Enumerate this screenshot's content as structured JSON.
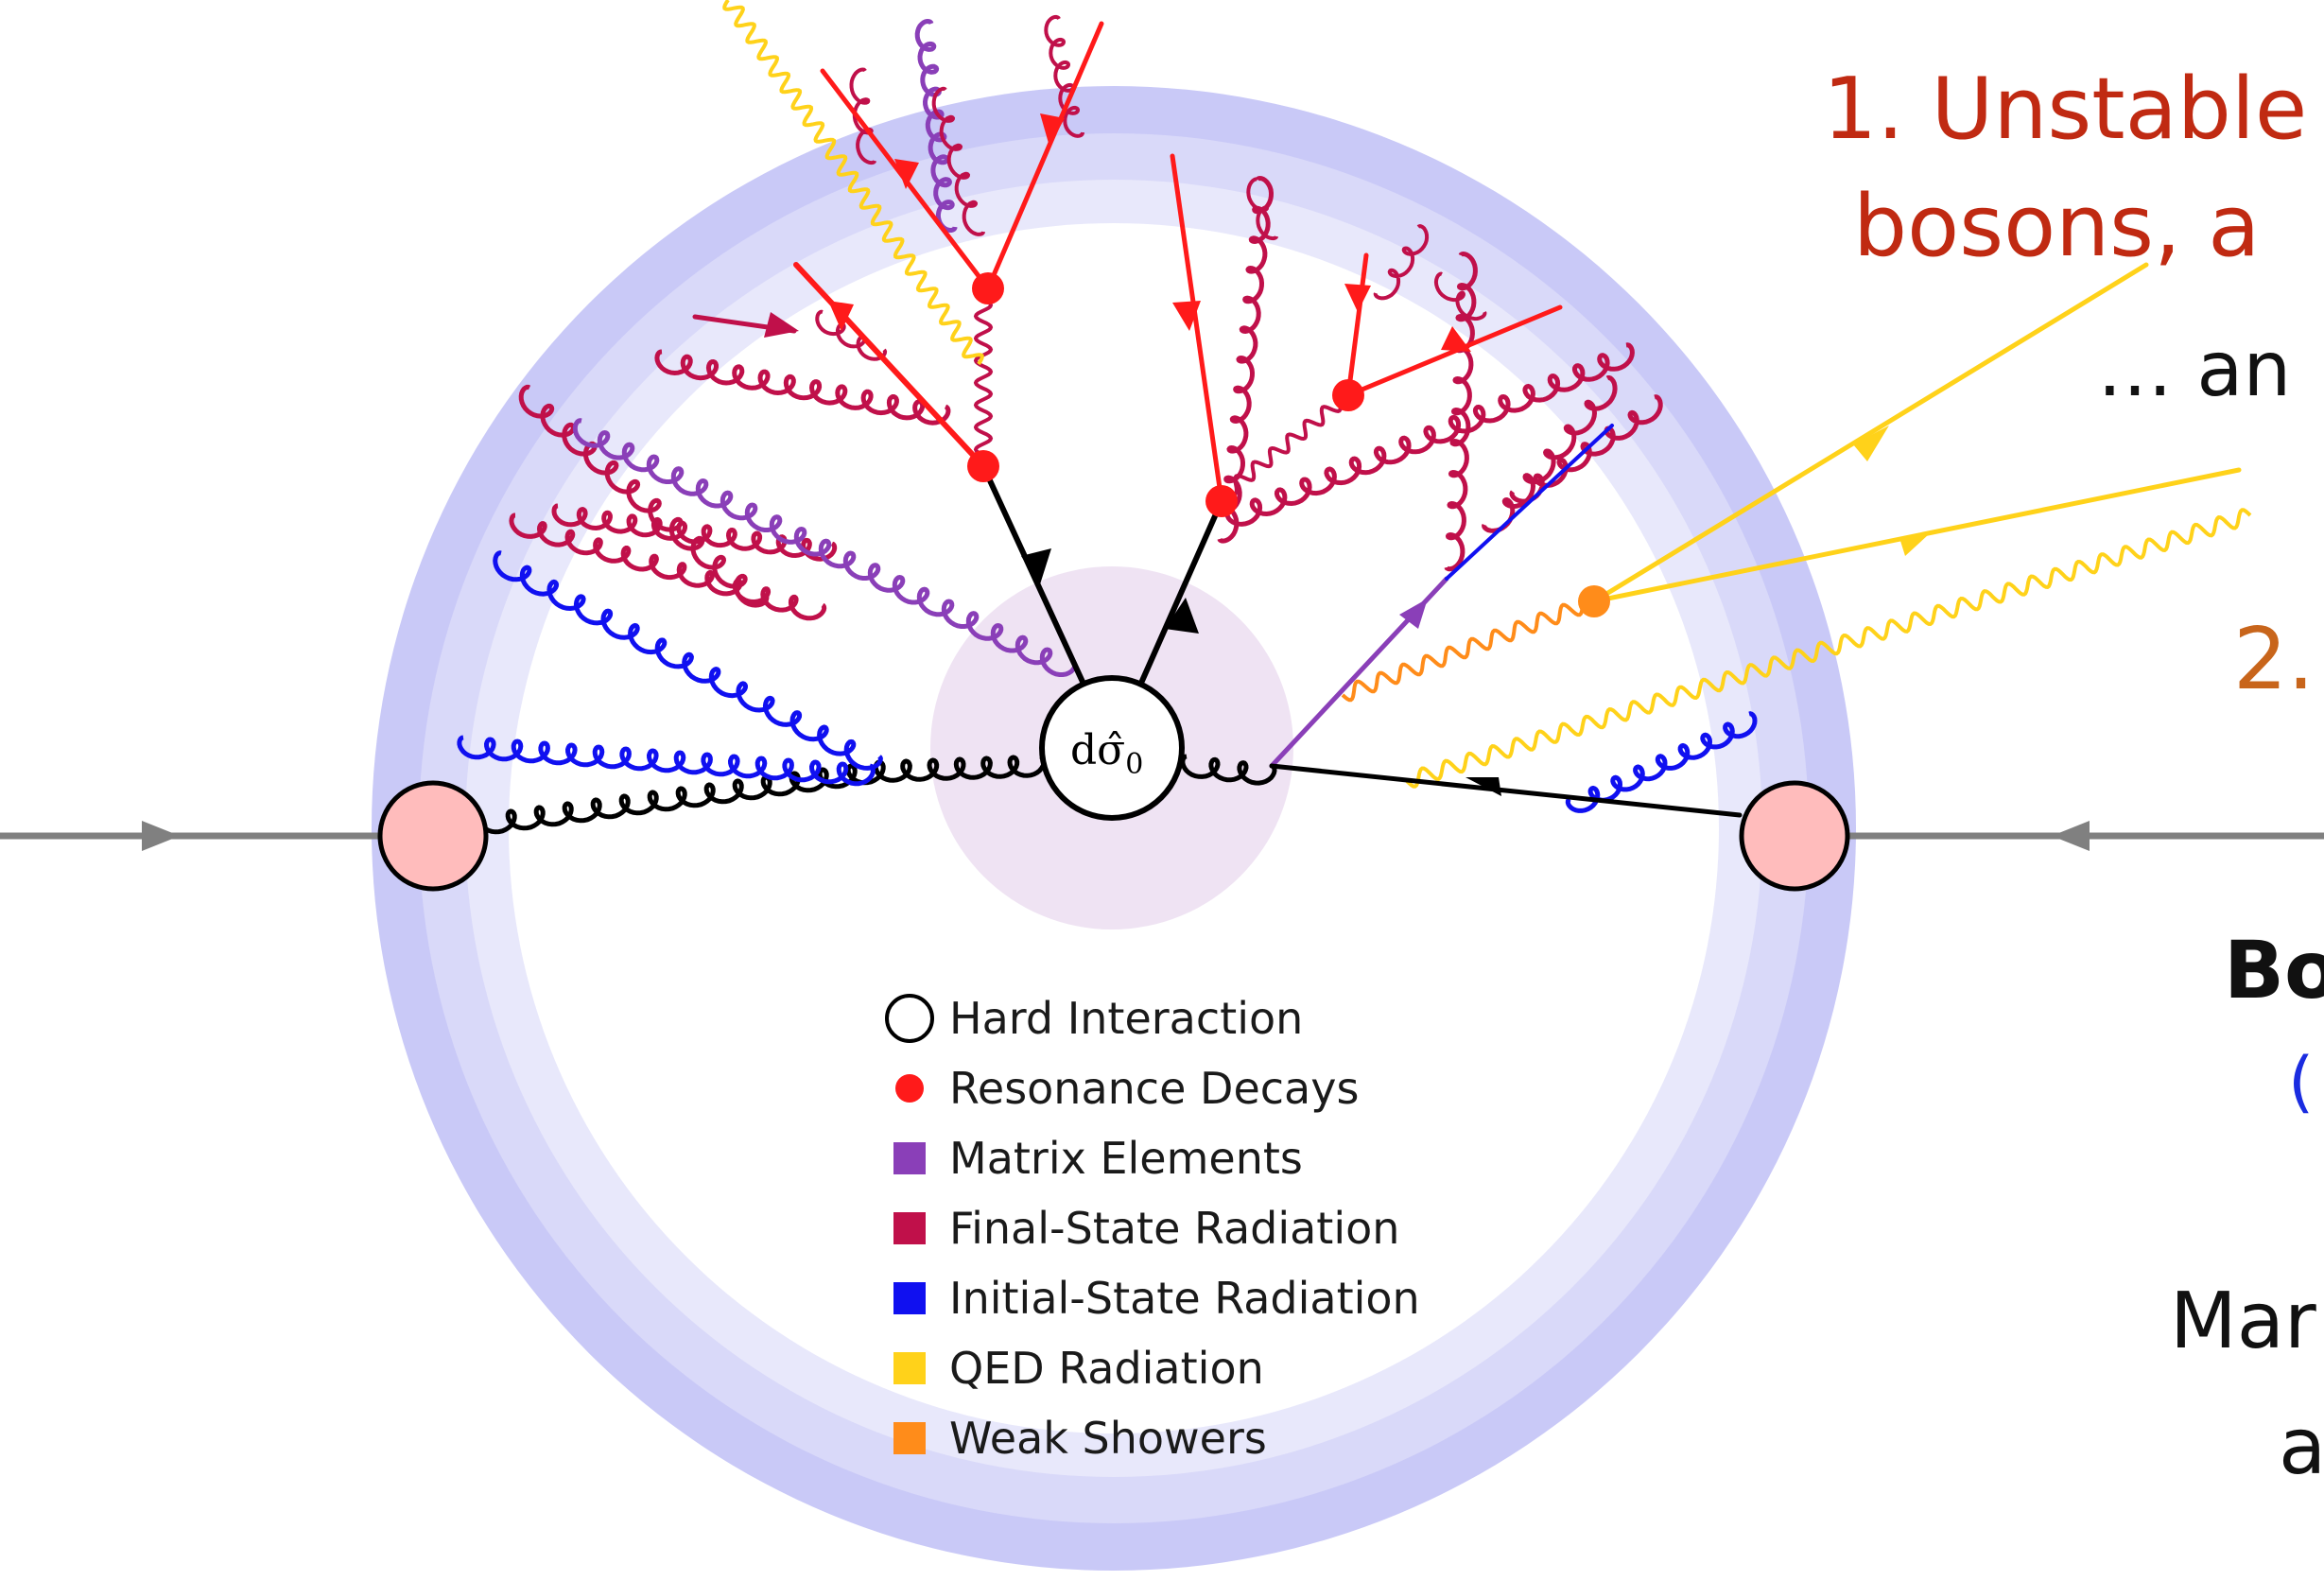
{
  "hard_interaction_symbol": "dσ̂",
  "hard_interaction_subscript": "0",
  "legend": [
    {
      "marker": "circle-outline",
      "label": "Hard Interaction",
      "color": "#000000"
    },
    {
      "marker": "dot",
      "label": "Resonance Decays",
      "color": "#ff1a1a"
    },
    {
      "marker": "square",
      "label": "Matrix Elements",
      "color": "#8a3fb8"
    },
    {
      "marker": "square",
      "label": "Final-State Radiation",
      "color": "#c0104a"
    },
    {
      "marker": "square",
      "label": "Initial-State Radiation",
      "color": "#1010f0"
    },
    {
      "marker": "square",
      "label": "QED Radiation",
      "color": "#ffd21a"
    },
    {
      "marker": "square",
      "label": "Weak Showers",
      "color": "#ff8c1a"
    }
  ],
  "side_text": {
    "line1": "1. Unstable",
    "line2": "bosons, a",
    "line3": "… an",
    "line4": "2.",
    "line5": "Bo",
    "line6": "(",
    "line7": "Mar",
    "line8": "a"
  },
  "colors": {
    "ring_outer": "#c9c9f7",
    "ring_mid": "#d9d9f9",
    "ring_inner": "#e8e8fb",
    "hard_blob": "#efe3f3",
    "proton": "#ffbcbc",
    "beam": "#808080",
    "text_red": "#c02a12",
    "text_orange": "#c8651b",
    "text_blue": "#1a2ce0"
  }
}
